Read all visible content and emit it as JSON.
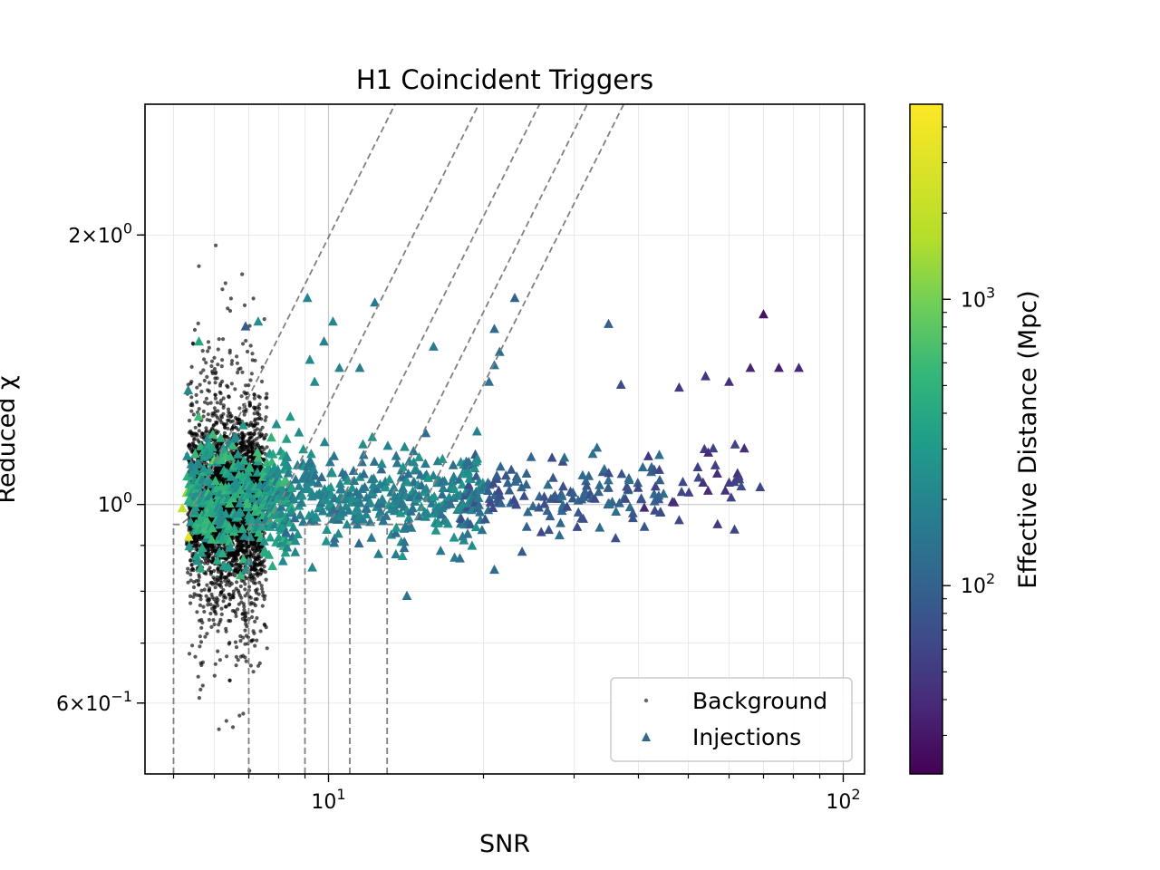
{
  "chart_data": {
    "type": "scatter",
    "title": "H1 Coincident Triggers",
    "xlabel": "SNR",
    "ylabel": "Reduced χ",
    "xscale": "log",
    "yscale": "log",
    "xlim": [
      4.4,
      110
    ],
    "ylim": [
      0.5,
      2.8
    ],
    "grid": true,
    "legend": {
      "placement": "bottom-right",
      "entries": [
        "Background",
        "Injections"
      ]
    },
    "x_ticks": [
      {
        "value": 10,
        "base": "10",
        "exp": "1"
      },
      {
        "value": 100,
        "base": "10",
        "exp": "2"
      }
    ],
    "y_ticks": [
      {
        "value": 2,
        "mant": "2",
        "base": "10",
        "exp": "0"
      },
      {
        "value": 1,
        "mant": "",
        "base": "10",
        "exp": "0"
      },
      {
        "value": 0.6,
        "mant": "6",
        "base": "10",
        "exp": "−1"
      }
    ],
    "colorbar": {
      "label": "Effective Distance (Mpc)",
      "scale": "log",
      "range": [
        22,
        4800
      ],
      "colormap": "viridis",
      "ticks": [
        {
          "value": 100,
          "base": "10",
          "exp": "2"
        },
        {
          "value": 1000,
          "base": "10",
          "exp": "3"
        }
      ]
    },
    "contours": [
      {
        "x_start": 5.0,
        "x_cross": 5.5
      },
      {
        "x_start": 7.0,
        "x_cross": 8.0
      },
      {
        "x_start": 9.0,
        "x_cross": 10.5
      },
      {
        "x_start": 11.0,
        "x_cross": 13.0
      },
      {
        "x_start": 13.0,
        "x_cross": 15.3
      }
    ],
    "series": [
      {
        "name": "Background",
        "marker": "dot",
        "color": "#000000",
        "clusters": [
          {
            "x_range": [
              5.35,
              7.45
            ],
            "y_center": 1.0,
            "y_sigma": 0.09,
            "count": 2600
          },
          {
            "x_range": [
              5.3,
              7.6
            ],
            "y_center": 1.0,
            "y_sigma": 0.17,
            "count": 1000
          },
          {
            "x_range": [
              5.6,
              7.3
            ],
            "y_center": 1.02,
            "y_sigma": 0.25,
            "count": 300
          }
        ]
      },
      {
        "name": "Injections",
        "marker": "triangle",
        "color": "#31688e",
        "points": [
          {
            "x": 23.0,
            "y": 1.7,
            "d": 120
          },
          {
            "x": 70.0,
            "y": 1.63,
            "d": 28
          },
          {
            "x": 35.0,
            "y": 1.59,
            "d": 110
          },
          {
            "x": 21.0,
            "y": 1.57,
            "d": 140
          },
          {
            "x": 12.3,
            "y": 1.68,
            "d": 200
          },
          {
            "x": 9.1,
            "y": 1.7,
            "d": 250
          },
          {
            "x": 10.2,
            "y": 1.6,
            "d": 260
          },
          {
            "x": 7.3,
            "y": 1.6,
            "d": 330
          },
          {
            "x": 6.9,
            "y": 1.58,
            "d": 100
          },
          {
            "x": 16.0,
            "y": 1.5,
            "d": 200
          },
          {
            "x": 21.5,
            "y": 1.48,
            "d": 150
          },
          {
            "x": 9.8,
            "y": 1.52,
            "d": 230
          },
          {
            "x": 5.6,
            "y": 1.52,
            "d": 520
          },
          {
            "x": 9.2,
            "y": 1.45,
            "d": 280
          },
          {
            "x": 21.0,
            "y": 1.43,
            "d": 160
          },
          {
            "x": 11.5,
            "y": 1.42,
            "d": 220
          },
          {
            "x": 10.5,
            "y": 1.42,
            "d": 240
          },
          {
            "x": 82.0,
            "y": 1.42,
            "d": 40
          },
          {
            "x": 75.0,
            "y": 1.42,
            "d": 35
          },
          {
            "x": 66.0,
            "y": 1.42,
            "d": 38
          },
          {
            "x": 54.0,
            "y": 1.39,
            "d": 50
          },
          {
            "x": 60.0,
            "y": 1.37,
            "d": 45
          },
          {
            "x": 48.0,
            "y": 1.35,
            "d": 55
          },
          {
            "x": 37.0,
            "y": 1.36,
            "d": 80
          },
          {
            "x": 20.5,
            "y": 1.37,
            "d": 160
          },
          {
            "x": 9.4,
            "y": 1.37,
            "d": 300
          },
          {
            "x": 57.0,
            "y": 0.95,
            "d": 55
          },
          {
            "x": 48.0,
            "y": 0.96,
            "d": 70
          },
          {
            "x": 21.0,
            "y": 0.845,
            "d": 150
          },
          {
            "x": 14.2,
            "y": 0.79,
            "d": 170
          },
          {
            "x": 18.0,
            "y": 0.87,
            "d": 160
          },
          {
            "x": 12.5,
            "y": 0.88,
            "d": 210
          },
          {
            "x": 9.3,
            "y": 0.85,
            "d": 280
          },
          {
            "x": 5.35,
            "y": 0.92,
            "d": 3800
          },
          {
            "x": 5.2,
            "y": 0.99,
            "d": 3000
          },
          {
            "x": 5.3,
            "y": 1.03,
            "d": 2000
          },
          {
            "x": 6.0,
            "y": 1.12,
            "d": 1500
          }
        ],
        "clouds": [
          {
            "x_range": [
              5.3,
              8.5
            ],
            "y_center": 1.02,
            "y_sigma": 0.075,
            "count": 380,
            "dist_range": [
              250,
              900
            ]
          },
          {
            "x_range": [
              7.5,
              20
            ],
            "y_center": 1.02,
            "y_sigma": 0.055,
            "count": 420,
            "dist_range": [
              140,
              380
            ]
          },
          {
            "x_range": [
              18,
              45
            ],
            "y_center": 1.03,
            "y_sigma": 0.045,
            "count": 150,
            "dist_range": [
              70,
              160
            ]
          },
          {
            "x_range": [
              40,
              70
            ],
            "y_center": 1.07,
            "y_sigma": 0.06,
            "count": 30,
            "dist_range": [
              40,
              80
            ]
          }
        ]
      }
    ]
  }
}
